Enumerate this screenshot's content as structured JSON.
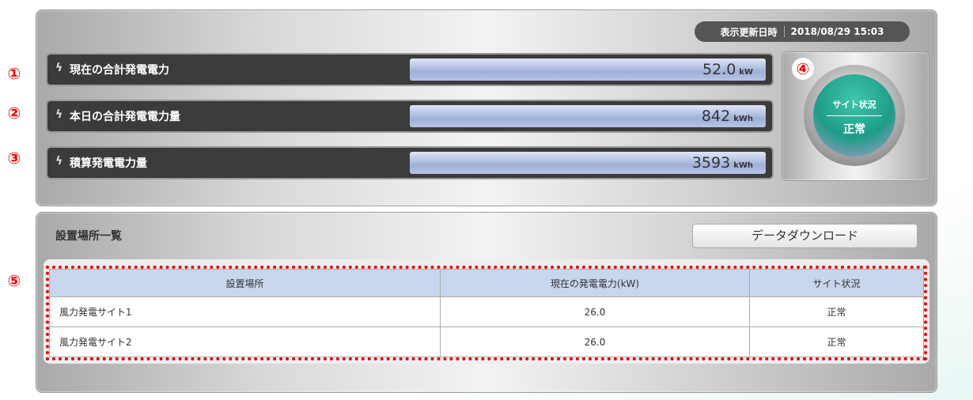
{
  "header": {
    "update_label": "表示更新日時",
    "update_time": "2018/08/29 15:03"
  },
  "markers": [
    "①",
    "②",
    "③",
    "④",
    "⑤"
  ],
  "meters": [
    {
      "label": "現在の合計発電電力",
      "value": "52.0",
      "unit": "kW"
    },
    {
      "label": "本日の合計発電電力量",
      "value": 842,
      "unit": "kWh"
    },
    {
      "label": "積算発電電力量",
      "value": 3593,
      "unit": "kWh"
    }
  ],
  "status": {
    "title": "サイト状況",
    "value": "正常"
  },
  "list": {
    "title": "設置場所一覧",
    "download": "データダウンロード"
  },
  "table": {
    "headers": [
      "設置場所",
      "現在の発電電力(kW)",
      "サイト状況"
    ],
    "rows": [
      [
        "風力発電サイト1",
        "26.0",
        "正常"
      ],
      [
        "風力発電サイト2",
        "26.0",
        "正常"
      ]
    ]
  }
}
